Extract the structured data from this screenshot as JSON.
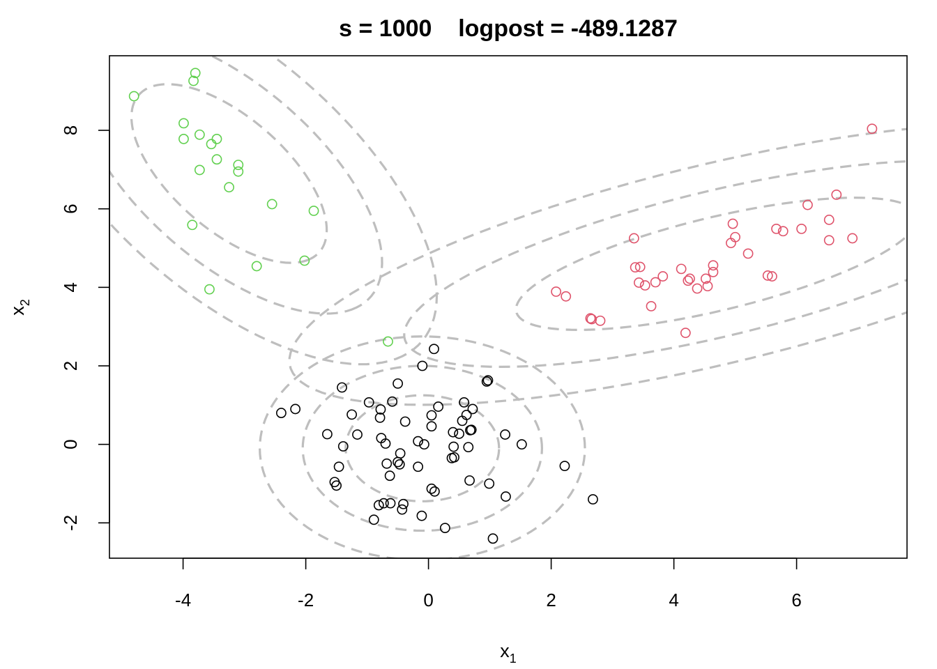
{
  "chart_data": {
    "type": "scatter",
    "title": "s = 1000    logpost = -489.1287",
    "xlabel": {
      "base": "x",
      "sub": "1"
    },
    "ylabel": {
      "base": "x",
      "sub": "2"
    },
    "xlim": [
      -5.2,
      7.8
    ],
    "ylim": [
      -2.9,
      9.9
    ],
    "xticks": [
      -4,
      -2,
      0,
      2,
      4,
      6
    ],
    "yticks": [
      -2,
      0,
      2,
      4,
      6,
      8
    ],
    "grid": false,
    "series": [
      {
        "color": "#000000",
        "points": [
          [
            0.09,
            2.43
          ],
          [
            -0.1,
            2.0
          ],
          [
            -0.5,
            1.55
          ],
          [
            -1.41,
            1.45
          ],
          [
            0.95,
            1.6
          ],
          [
            0.97,
            1.63
          ],
          [
            -0.97,
            1.07
          ],
          [
            -0.59,
            1.09
          ],
          [
            0.58,
            1.07
          ],
          [
            0.16,
            0.96
          ],
          [
            0.72,
            0.9
          ],
          [
            -2.17,
            0.9
          ],
          [
            -2.4,
            0.8
          ],
          [
            -0.78,
            0.89
          ],
          [
            -1.25,
            0.76
          ],
          [
            0.05,
            0.74
          ],
          [
            0.62,
            0.75
          ],
          [
            -0.79,
            0.68
          ],
          [
            -0.38,
            0.58
          ],
          [
            0.55,
            0.6
          ],
          [
            0.05,
            0.46
          ],
          [
            0.68,
            0.36
          ],
          [
            0.7,
            0.37
          ],
          [
            -1.65,
            0.26
          ],
          [
            -1.16,
            0.25
          ],
          [
            0.4,
            0.31
          ],
          [
            0.5,
            0.27
          ],
          [
            1.25,
            0.25
          ],
          [
            -0.77,
            0.16
          ],
          [
            -0.17,
            0.08
          ],
          [
            -0.7,
            0.02
          ],
          [
            -0.07,
            0.0
          ],
          [
            1.52,
            0.0
          ],
          [
            -1.39,
            -0.05
          ],
          [
            0.41,
            -0.06
          ],
          [
            0.65,
            -0.07
          ],
          [
            -0.46,
            -0.23
          ],
          [
            0.42,
            -0.33
          ],
          [
            0.38,
            -0.35
          ],
          [
            -0.5,
            -0.45
          ],
          [
            -0.68,
            -0.49
          ],
          [
            -0.47,
            -0.51
          ],
          [
            -1.46,
            -0.57
          ],
          [
            -0.17,
            -0.57
          ],
          [
            2.22,
            -0.55
          ],
          [
            -0.63,
            -0.8
          ],
          [
            0.67,
            -0.92
          ],
          [
            -1.53,
            -0.96
          ],
          [
            -1.5,
            -1.05
          ],
          [
            0.99,
            -1.0
          ],
          [
            0.05,
            -1.13
          ],
          [
            0.1,
            -1.2
          ],
          [
            1.26,
            -1.33
          ],
          [
            2.68,
            -1.4
          ],
          [
            -0.73,
            -1.5
          ],
          [
            -0.62,
            -1.5
          ],
          [
            -0.41,
            -1.52
          ],
          [
            -0.81,
            -1.55
          ],
          [
            -0.43,
            -1.66
          ],
          [
            -0.11,
            -1.82
          ],
          [
            -0.89,
            -1.92
          ],
          [
            0.27,
            -2.13
          ],
          [
            1.05,
            -2.4
          ]
        ]
      },
      {
        "color": "#DF536B",
        "points": [
          [
            7.23,
            8.04
          ],
          [
            6.65,
            6.36
          ],
          [
            6.18,
            6.1
          ],
          [
            6.53,
            5.72
          ],
          [
            4.96,
            5.62
          ],
          [
            5.67,
            5.49
          ],
          [
            6.08,
            5.49
          ],
          [
            5.78,
            5.43
          ],
          [
            5.0,
            5.28
          ],
          [
            3.35,
            5.25
          ],
          [
            6.91,
            5.25
          ],
          [
            6.53,
            5.2
          ],
          [
            4.93,
            5.13
          ],
          [
            5.21,
            4.86
          ],
          [
            4.64,
            4.56
          ],
          [
            3.45,
            4.52
          ],
          [
            3.37,
            4.51
          ],
          [
            4.12,
            4.47
          ],
          [
            4.64,
            4.39
          ],
          [
            3.82,
            4.28
          ],
          [
            5.53,
            4.3
          ],
          [
            5.6,
            4.28
          ],
          [
            4.26,
            4.22
          ],
          [
            4.52,
            4.22
          ],
          [
            4.23,
            4.17
          ],
          [
            3.7,
            4.13
          ],
          [
            3.43,
            4.12
          ],
          [
            3.53,
            4.05
          ],
          [
            4.55,
            4.03
          ],
          [
            4.38,
            3.97
          ],
          [
            2.08,
            3.89
          ],
          [
            2.24,
            3.77
          ],
          [
            3.63,
            3.52
          ],
          [
            2.64,
            3.21
          ],
          [
            2.66,
            3.19
          ],
          [
            2.8,
            3.15
          ],
          [
            4.19,
            2.84
          ]
        ]
      },
      {
        "color": "#61D04F",
        "points": [
          [
            -3.8,
            9.46
          ],
          [
            -3.83,
            9.26
          ],
          [
            -4.8,
            8.87
          ],
          [
            -3.99,
            8.18
          ],
          [
            -3.73,
            7.89
          ],
          [
            -3.99,
            7.78
          ],
          [
            -3.45,
            7.78
          ],
          [
            -3.54,
            7.65
          ],
          [
            -3.45,
            7.26
          ],
          [
            -3.1,
            7.12
          ],
          [
            -3.73,
            6.99
          ],
          [
            -3.1,
            6.95
          ],
          [
            -3.25,
            6.55
          ],
          [
            -2.55,
            6.12
          ],
          [
            -1.87,
            5.95
          ],
          [
            -3.85,
            5.59
          ],
          [
            -2.02,
            4.68
          ],
          [
            -2.8,
            4.54
          ],
          [
            -3.57,
            3.95
          ],
          [
            -0.66,
            2.62
          ]
        ]
      }
    ],
    "contours": [
      {
        "cx": -3.25,
        "cy": 6.9,
        "rx": 2.55,
        "ry": 1.1,
        "angle": -60,
        "color": "#BEBEBE"
      },
      {
        "cx": -3.25,
        "cy": 6.9,
        "rx": 4.0,
        "ry": 1.72,
        "angle": -60,
        "color": "#BEBEBE"
      },
      {
        "cx": -3.25,
        "cy": 6.9,
        "rx": 5.45,
        "ry": 2.32,
        "angle": -60,
        "color": "#BEBEBE"
      },
      {
        "cx": 4.7,
        "cy": 4.6,
        "rx": 3.5,
        "ry": 1.14,
        "angle": 22,
        "color": "#BEBEBE"
      },
      {
        "cx": 4.7,
        "cy": 4.6,
        "rx": 5.45,
        "ry": 1.78,
        "angle": 22,
        "color": "#BEBEBE"
      },
      {
        "cx": 4.7,
        "cy": 4.6,
        "rx": 7.45,
        "ry": 2.44,
        "angle": 22,
        "color": "#BEBEBE"
      },
      {
        "cx": -0.1,
        "cy": -0.1,
        "rx": 1.25,
        "ry": 1.35,
        "angle": 0,
        "color": "#BEBEBE"
      },
      {
        "cx": -0.1,
        "cy": -0.1,
        "rx": 1.95,
        "ry": 2.1,
        "angle": 0,
        "color": "#BEBEBE"
      },
      {
        "cx": -0.1,
        "cy": -0.1,
        "rx": 2.65,
        "ry": 2.85,
        "angle": 0,
        "color": "#BEBEBE"
      }
    ]
  }
}
